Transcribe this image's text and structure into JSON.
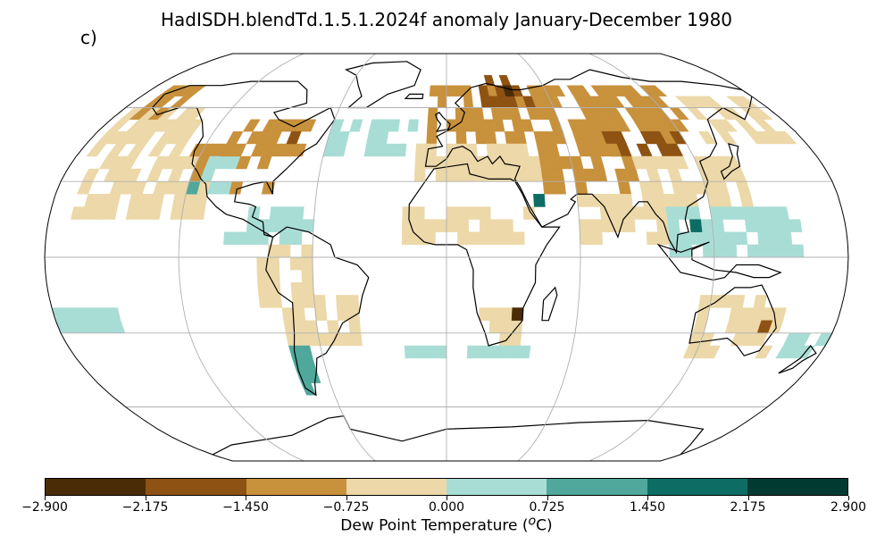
{
  "title": "HadISDH.blendTd.1.5.1.2024f anomaly January-December 1980",
  "panel_label": "c)",
  "colorbar": {
    "label_main": "Dew Point Temperature (",
    "label_unit_sup": "o",
    "label_unit_end": "C)",
    "bounds": [
      -2.9,
      -2.175,
      -1.45,
      -0.725,
      0.0,
      0.725,
      1.45,
      2.175,
      2.9
    ],
    "tick_labels": [
      "−2.900",
      "−2.175",
      "−1.450",
      "−0.725",
      "0.000",
      "0.725",
      "1.450",
      "2.175",
      "2.900"
    ],
    "colors": [
      "#4a2c07",
      "#8e5213",
      "#c8913c",
      "#ecd8a8",
      "#a8ddd5",
      "#4fa89b",
      "#0d6d64",
      "#003a30"
    ]
  },
  "map_colors": {
    "ocean_missing": "#ffffff",
    "land_outline": "#000000",
    "graticule": "#b0b0b0",
    "frame": "#000000"
  },
  "chart_data": {
    "type": "heatmap",
    "projection": "robinson",
    "grid_resolution_deg": 5,
    "lon_range": [
      -180,
      180
    ],
    "lat_range": [
      -90,
      90
    ],
    "meridians": [
      -120,
      -60,
      0,
      60,
      120
    ],
    "parallels": [
      -60,
      -30,
      0,
      30,
      60
    ],
    "regions": [
      {
        "lon": [
          -170,
          -110
        ],
        "lat": [
          15,
          40
        ],
        "value": -0.4
      },
      {
        "lon": [
          -175,
          -130
        ],
        "lat": [
          40,
          60
        ],
        "value": -0.4
      },
      {
        "lon": [
          -130,
          -110
        ],
        "lat": [
          30,
          45
        ],
        "value": -1.1
      },
      {
        "lon": [
          -115,
          -100
        ],
        "lat": [
          25,
          40
        ],
        "value": 0.4
      },
      {
        "lon": [
          -110,
          -70
        ],
        "lat": [
          40,
          55
        ],
        "value": -1.1
      },
      {
        "lon": [
          -100,
          -80
        ],
        "lat": [
          25,
          40
        ],
        "value": -1.1
      },
      {
        "lon": [
          -170,
          -150
        ],
        "lat": [
          55,
          70
        ],
        "value": -1.1
      },
      {
        "lon": [
          -100,
          -60
        ],
        "lat": [
          5,
          20
        ],
        "value": 0.4
      },
      {
        "lon": [
          -85,
          -60
        ],
        "lat": [
          -20,
          5
        ],
        "value": -0.4
      },
      {
        "lon": [
          -75,
          -40
        ],
        "lat": [
          -35,
          -15
        ],
        "value": -0.4
      },
      {
        "lon": [
          -75,
          -65
        ],
        "lat": [
          -55,
          -35
        ],
        "value": 0.9
      },
      {
        "lon": [
          -60,
          -10
        ],
        "lat": [
          40,
          55
        ],
        "value": 0.4
      },
      {
        "lon": [
          -10,
          60
        ],
        "lat": [
          45,
          70
        ],
        "value": -1.1
      },
      {
        "lon": [
          20,
          50
        ],
        "lat": [
          60,
          75
        ],
        "value": -1.8
      },
      {
        "lon": [
          60,
          130
        ],
        "lat": [
          45,
          70
        ],
        "value": -1.1
      },
      {
        "lon": [
          80,
          120
        ],
        "lat": [
          40,
          50
        ],
        "value": -1.8
      },
      {
        "lon": [
          130,
          175
        ],
        "lat": [
          45,
          65
        ],
        "value": -0.4
      },
      {
        "lon": [
          -15,
          45
        ],
        "lat": [
          30,
          45
        ],
        "value": -0.4
      },
      {
        "lon": [
          45,
          90
        ],
        "lat": [
          25,
          45
        ],
        "value": -1.1
      },
      {
        "lon": [
          90,
          140
        ],
        "lat": [
          20,
          40
        ],
        "value": -0.4
      },
      {
        "lon": [
          -20,
          40
        ],
        "lat": [
          5,
          20
        ],
        "value": -0.4
      },
      {
        "lon": [
          60,
          100
        ],
        "lat": [
          5,
          25
        ],
        "value": -0.4
      },
      {
        "lon": [
          100,
          160
        ],
        "lat": [
          0,
          20
        ],
        "value": 0.4
      },
      {
        "lon": [
          115,
          155
        ],
        "lat": [
          -40,
          -15
        ],
        "value": -0.4
      },
      {
        "lon": [
          15,
          35
        ],
        "lat": [
          -35,
          -20
        ],
        "value": -0.4
      },
      {
        "lon": [
          -20,
          40
        ],
        "lat": [
          -40,
          -35
        ],
        "value": 0.4
      },
      {
        "lon": [
          160,
          180
        ],
        "lat": [
          -40,
          -30
        ],
        "value": 0.4
      },
      {
        "lon": [
          -180,
          -150
        ],
        "lat": [
          -30,
          -20
        ],
        "value": 0.4
      }
    ],
    "hotspots": [
      {
        "lon": 35,
        "lat": 65,
        "value": -2.5
      },
      {
        "lon": 40,
        "lat": 20,
        "value": 1.8
      },
      {
        "lon": 110,
        "lat": 10,
        "value": 1.8
      },
      {
        "lon": 30,
        "lat": -25,
        "value": -2.5
      },
      {
        "lon": -80,
        "lat": 45,
        "value": -1.8
      },
      {
        "lon": 145,
        "lat": -30,
        "value": -1.8
      },
      {
        "lon": -120,
        "lat": 25,
        "value": 1.1
      }
    ]
  }
}
